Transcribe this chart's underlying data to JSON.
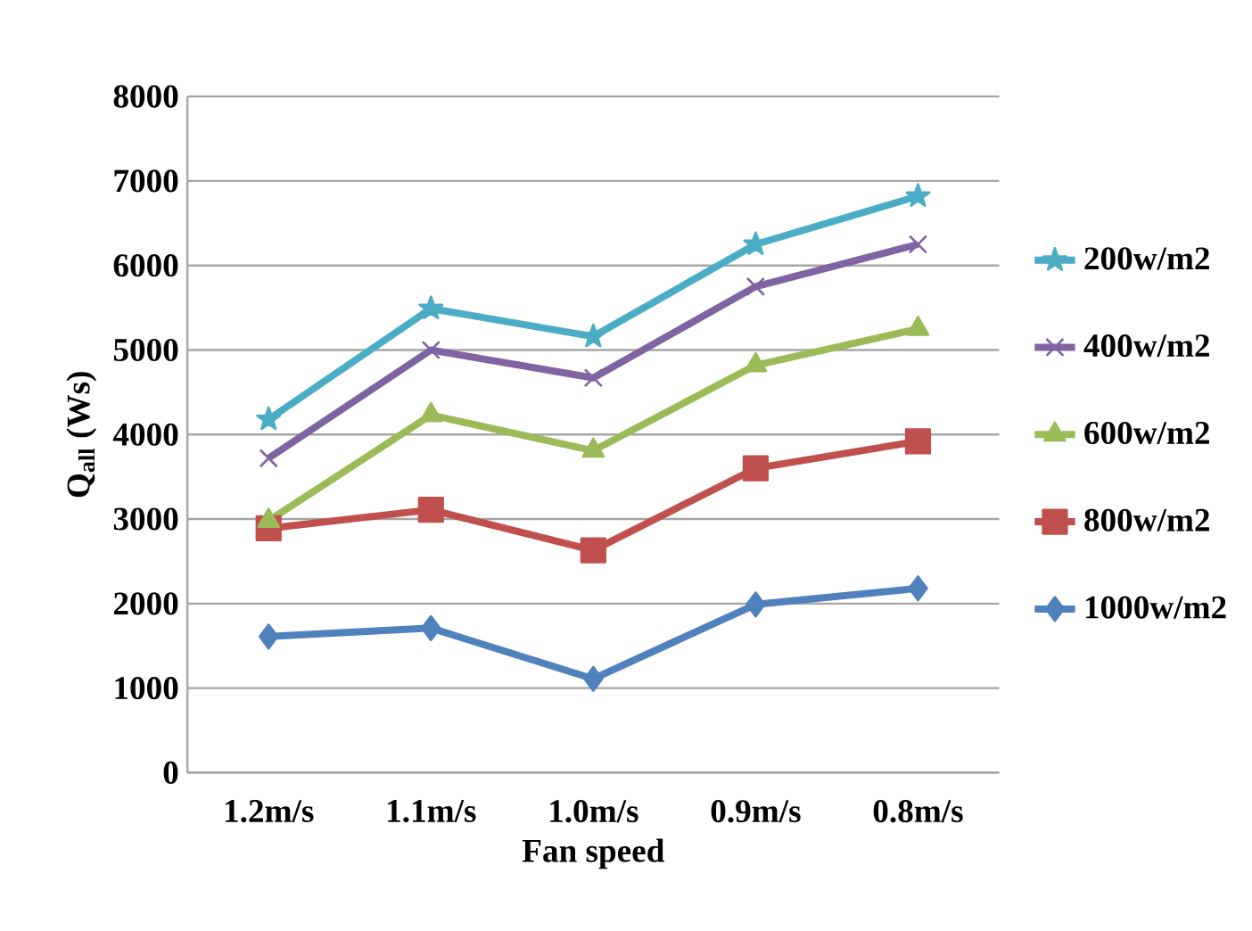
{
  "chart_data": {
    "type": "line",
    "xlabel": "Fan speed",
    "ylabel": "Q$_{all}$ (Ws)",
    "categories": [
      "1.2m/s",
      "1.1m/s",
      "1.0m/s",
      "0.9m/s",
      "0.8m/s"
    ],
    "ylim": [
      0,
      8000
    ],
    "yticks": [
      0,
      1000,
      2000,
      3000,
      4000,
      5000,
      6000,
      7000,
      8000
    ],
    "grid": "y",
    "legend": "right",
    "series": [
      {
        "name": "200w/m2",
        "color": "#4bacc6",
        "marker": "star",
        "values": [
          4180,
          5490,
          5160,
          6250,
          6820
        ]
      },
      {
        "name": "400w/m2",
        "color": "#8064a2",
        "marker": "cross",
        "values": [
          3720,
          5000,
          4670,
          5750,
          6250
        ]
      },
      {
        "name": "600w/m2",
        "color": "#9bbb59",
        "marker": "triangle",
        "values": [
          2980,
          4230,
          3810,
          4820,
          5250
        ]
      },
      {
        "name": "800w/m2",
        "color": "#c0504d",
        "marker": "square",
        "values": [
          2890,
          3110,
          2630,
          3600,
          3920
        ]
      },
      {
        "name": "1000w/m2",
        "color": "#4f81bd",
        "marker": "diamond",
        "values": [
          1610,
          1710,
          1110,
          1990,
          2180
        ]
      }
    ]
  }
}
